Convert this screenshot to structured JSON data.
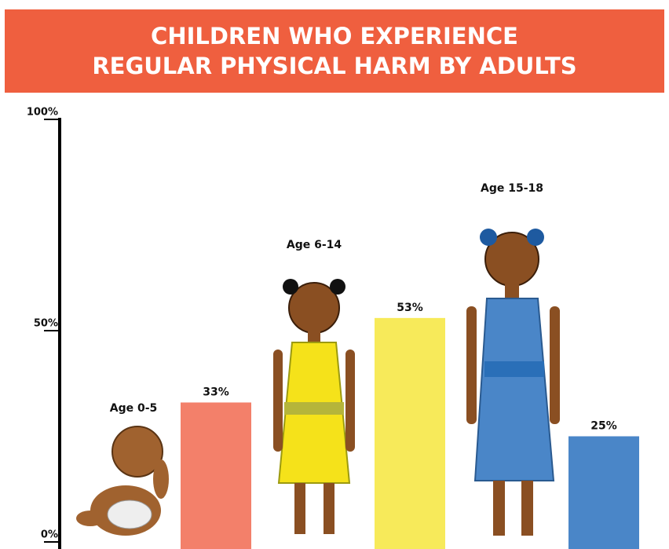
{
  "chart_data": {
    "type": "bar",
    "title": "CHILDREN WHO EXPERIENCE REGULAR PHYSICAL HARM BY ADULTS",
    "categories": [
      "Age 0-5",
      "Age 6-14",
      "Age 15-18"
    ],
    "values": [
      33,
      53,
      25
    ],
    "value_labels": [
      "33%",
      "53%",
      "25%"
    ],
    "colors": [
      "#f3806a",
      "#f7ea5a",
      "#4a86c8"
    ],
    "ylim": [
      0,
      100
    ],
    "yticks": [
      {
        "value": 0,
        "label": "0%"
      },
      {
        "value": 50,
        "label": "50%"
      },
      {
        "value": 100,
        "label": "100%"
      }
    ]
  }
}
